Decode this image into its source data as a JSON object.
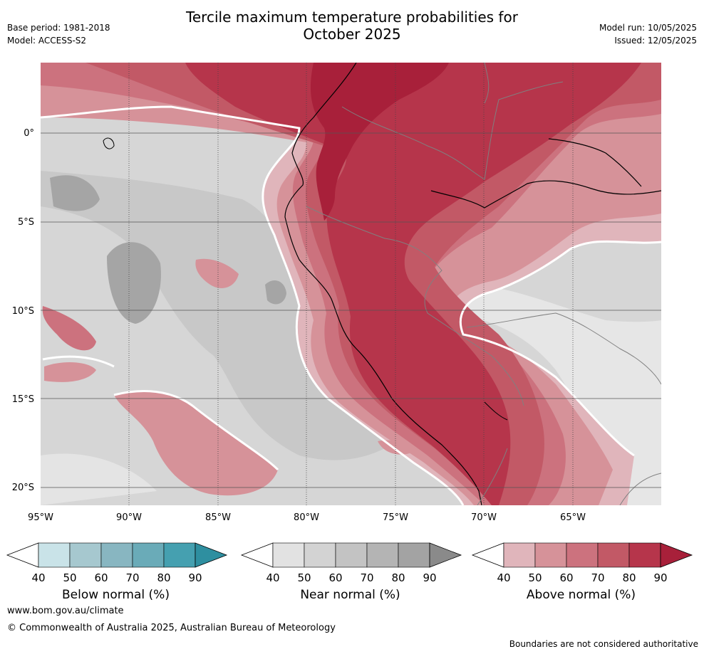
{
  "header": {
    "title_line1": "Tercile maximum temperature probabilities for",
    "title_line2": "October 2025",
    "base_period": "Base period: 1981-2018",
    "model": "Model: ACCESS-S2",
    "model_run": "Model run: 10/05/2025",
    "issued": "Issued: 12/05/2025"
  },
  "map": {
    "lat_labels": [
      "0°",
      "5°S",
      "10°S",
      "15°S",
      "20°S"
    ],
    "lon_labels": [
      "95°W",
      "90°W",
      "85°W",
      "80°W",
      "75°W",
      "70°W",
      "65°W"
    ]
  },
  "colorbars": [
    {
      "title": "Below normal (%)",
      "labels": [
        "40",
        "50",
        "60",
        "70",
        "80",
        "90"
      ],
      "colors": [
        "#ffffff",
        "#c9e3e8",
        "#a6c8cf",
        "#88b6c1",
        "#6aabb8",
        "#45a0b0",
        "#2e8fa0"
      ]
    },
    {
      "title": "Near normal (%)",
      "labels": [
        "40",
        "50",
        "60",
        "70",
        "80",
        "90"
      ],
      "colors": [
        "#ffffff",
        "#e2e2e2",
        "#d3d3d3",
        "#c3c3c3",
        "#b4b4b4",
        "#a3a3a3",
        "#8a8a8a"
      ]
    },
    {
      "title": "Above normal (%)",
      "labels": [
        "40",
        "50",
        "60",
        "70",
        "80",
        "90"
      ],
      "colors": [
        "#ffffff",
        "#e0b5bb",
        "#d69299",
        "#cc727e",
        "#c25966",
        "#b6354b",
        "#a8203a"
      ]
    }
  ],
  "footer": {
    "url": "www.bom.gov.au/climate",
    "copyright": "© Commonwealth of Australia 2025, Australian Bureau of Meteorology",
    "disclaimer": "Boundaries are not considered authoritative"
  }
}
